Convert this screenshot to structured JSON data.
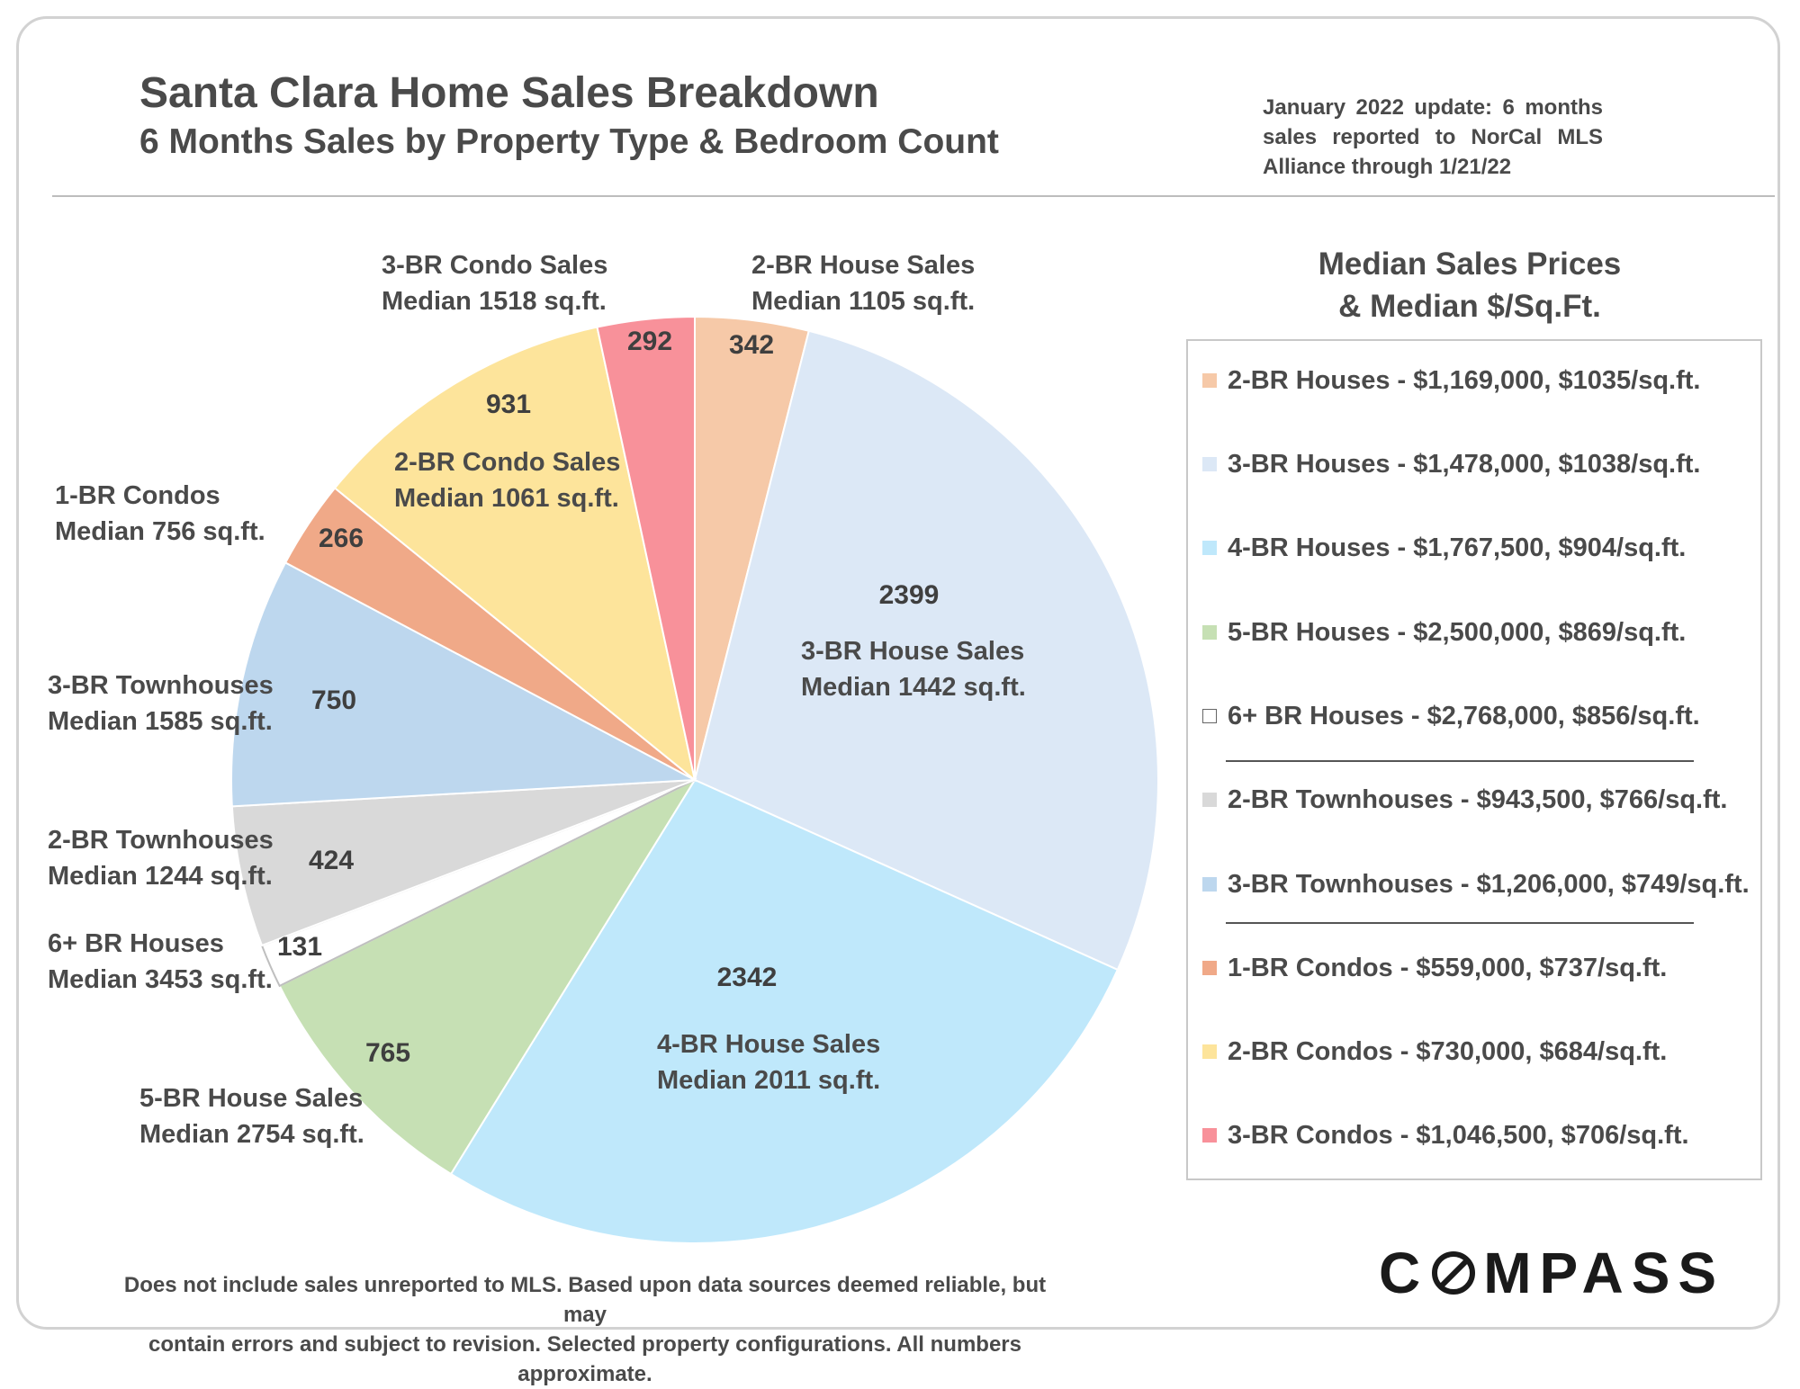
{
  "header": {
    "title": "Santa Clara Home Sales Breakdown",
    "subtitle": "6 Months Sales by Property Type & Bedroom Count",
    "update_note": "January 2022 update: 6 months sales reported to NorCal MLS Alliance through 1/21/22"
  },
  "chart_data": {
    "type": "pie",
    "title": "Santa Clara Home Sales Breakdown",
    "subtitle": "6 Months Sales by Property Type & Bedroom Count",
    "start": "12 o'clock",
    "direction": "clockwise",
    "slices": [
      {
        "key": "2br_house",
        "value": 342,
        "label": [
          "2-BR House Sales",
          "Median 1105 sq.ft."
        ],
        "color": "#f6c9a8"
      },
      {
        "key": "3br_house",
        "value": 2399,
        "label": [
          "3-BR House Sales",
          "Median 1442 sq.ft."
        ],
        "color": "#dce8f6"
      },
      {
        "key": "4br_house",
        "value": 2342,
        "label": [
          "4-BR House Sales",
          "Median 2011 sq.ft."
        ],
        "color": "#bfe8fb"
      },
      {
        "key": "5br_house",
        "value": 765,
        "label": [
          "5-BR House Sales",
          "Median 2754 sq.ft."
        ],
        "color": "#c6e0b4"
      },
      {
        "key": "6br_house",
        "value": 131,
        "label": [
          "6+ BR Houses",
          "Median 3453 sq.ft."
        ],
        "color": "#ffffff"
      },
      {
        "key": "2br_townhouse",
        "value": 424,
        "label": [
          "2-BR Townhouses",
          "Median 1244 sq.ft."
        ],
        "color": "#d9d9d9"
      },
      {
        "key": "3br_townhouse",
        "value": 750,
        "label": [
          "3-BR Townhouses",
          "Median 1585 sq.ft."
        ],
        "color": "#bdd7ee"
      },
      {
        "key": "1br_condo",
        "value": 266,
        "label": [
          "1-BR Condos",
          "Median 756 sq.ft."
        ],
        "color": "#f0a988"
      },
      {
        "key": "2br_condo",
        "value": 931,
        "label": [
          "2-BR Condo Sales",
          "Median 1061 sq.ft."
        ],
        "color": "#fde49b"
      },
      {
        "key": "3br_condo",
        "value": 292,
        "label": [
          "3-BR Condo Sales",
          "Median 1518 sq.ft."
        ],
        "color": "#f8919a"
      }
    ],
    "legend": {
      "title": [
        "Median Sales Prices",
        "& Median $/Sq.Ft."
      ],
      "placement": "right",
      "items": [
        {
          "text": "2-BR Houses - $1,169,000, $1035/sq.ft.",
          "color": "#f6c9a8"
        },
        {
          "text": "3-BR Houses - $1,478,000, $1038/sq.ft.",
          "color": "#dce8f6"
        },
        {
          "text": "4-BR Houses - $1,767,500, $904/sq.ft.",
          "color": "#bfe8fb"
        },
        {
          "text": "5-BR Houses - $2,500,000, $869/sq.ft.",
          "color": "#c6e0b4"
        },
        {
          "text": "6+ BR Houses - $2,768,000, $856/sq.ft.",
          "color": "#ffffff"
        },
        {
          "text": "2-BR Townhouses - $943,500, $766/sq.ft.",
          "color": "#d9d9d9"
        },
        {
          "text": "3-BR Townhouses - $1,206,000, $749/sq.ft.",
          "color": "#bdd7ee"
        },
        {
          "text": "1-BR Condos - $559,000, $737/sq.ft.",
          "color": "#f0a988"
        },
        {
          "text": "2-BR Condos - $730,000, $684/sq.ft.",
          "color": "#fde49b"
        },
        {
          "text": "3-BR Condos - $1,046,500, $706/sq.ft.",
          "color": "#f8919a"
        }
      ]
    }
  },
  "footnote": {
    "line1": "Does not include sales unreported to MLS.  Based upon data sources deemed reliable, but may",
    "line2": "contain errors and subject to revision. Selected property configurations. All numbers approximate."
  },
  "logo": {
    "before": "C",
    "after": "MPASS"
  }
}
